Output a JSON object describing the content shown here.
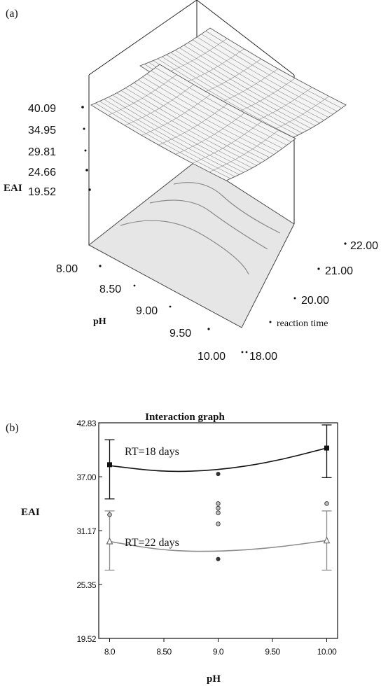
{
  "chart_data": [
    {
      "panel_label": "(a)",
      "type": "surface3d",
      "zlabel": "EAI",
      "xlabel": "pH",
      "ylabel": "reaction time",
      "z_ticks": [
        "40.09",
        "34.95",
        "29.81",
        "24.66",
        "19.52"
      ],
      "x_ticks": [
        "8.00",
        "8.50",
        "9.00",
        "9.50",
        "10.00"
      ],
      "y_ticks": [
        "18.00",
        "20.00",
        "21.00",
        "22.00"
      ],
      "xlim": [
        8.0,
        10.0
      ],
      "ylim": [
        18.0,
        22.0
      ],
      "zlim": [
        19.52,
        40.09
      ],
      "surfaces": [
        {
          "level": "lower",
          "z_range": [
            30.5,
            36.5
          ]
        },
        {
          "level": "upper",
          "z_range": [
            35.5,
            41.0
          ]
        }
      ]
    },
    {
      "panel_label": "(b)",
      "type": "line",
      "title": "Interaction graph",
      "xlabel": "pH",
      "ylabel": "EAI",
      "x_ticks": [
        "8.0",
        "8.50",
        "9.0",
        "9.50",
        "10.00"
      ],
      "y_ticks": [
        "42.83",
        "37.00",
        "31.17",
        "25.35",
        "19.52"
      ],
      "xlim": [
        7.9,
        10.1
      ],
      "ylim": [
        19.52,
        42.83
      ],
      "series": [
        {
          "name": "RT=18 days",
          "color": "#111111",
          "marker": "square",
          "curve": [
            [
              8.0,
              38.2
            ],
            [
              8.5,
              37.5
            ],
            [
              9.0,
              37.7
            ],
            [
              9.5,
              38.6
            ],
            [
              10.0,
              40.1
            ]
          ],
          "points": [
            {
              "x": 8.0,
              "y": 38.3
            },
            {
              "x": 10.0,
              "y": 40.1
            }
          ],
          "error_bars": [
            {
              "x": 8.0,
              "low": 34.6,
              "high": 41.0
            },
            {
              "x": 10.0,
              "low": 36.9,
              "high": 42.6
            }
          ]
        },
        {
          "name": "RT=22 days",
          "color": "#8c8c8c",
          "marker": "triangle",
          "curve": [
            [
              8.0,
              30.0
            ],
            [
              8.5,
              29.0
            ],
            [
              9.0,
              28.9
            ],
            [
              9.5,
              29.3
            ],
            [
              10.0,
              30.1
            ]
          ],
          "points": [
            {
              "x": 8.0,
              "y": 30.0
            },
            {
              "x": 10.0,
              "y": 30.1
            }
          ],
          "error_bars": [
            {
              "x": 8.0,
              "low": 26.9,
              "high": 33.3
            },
            {
              "x": 10.0,
              "low": 26.9,
              "high": 33.3
            }
          ]
        }
      ],
      "design_points": [
        {
          "x": 8.0,
          "y": 32.9
        },
        {
          "x": 9.0,
          "y": 37.3
        },
        {
          "x": 9.0,
          "y": 34.1
        },
        {
          "x": 9.0,
          "y": 33.6
        },
        {
          "x": 9.0,
          "y": 33.1
        },
        {
          "x": 9.0,
          "y": 31.9
        },
        {
          "x": 9.0,
          "y": 28.1
        },
        {
          "x": 10.0,
          "y": 34.1
        }
      ]
    }
  ]
}
